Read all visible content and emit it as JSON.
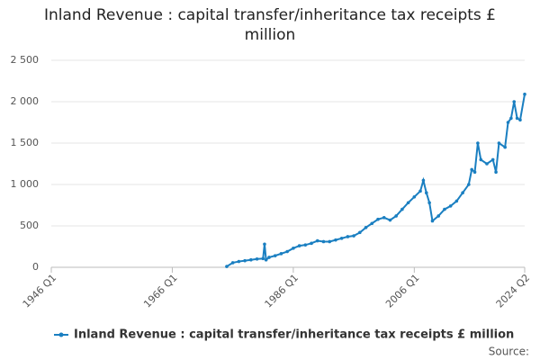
{
  "chart_data": {
    "type": "line",
    "title": "Inland Revenue : capital transfer/inheritance tax receipts £ million",
    "source": "Source:",
    "xlim": [
      1946,
      2024.25
    ],
    "xticks": [
      {
        "value": 1946,
        "label": "1946 Q1"
      },
      {
        "value": 1966,
        "label": "1966 Q1"
      },
      {
        "value": 1986,
        "label": "1986 Q1"
      },
      {
        "value": 2006,
        "label": "2006 Q1"
      },
      {
        "value": 2024.25,
        "label": "2024 Q2"
      }
    ],
    "ylim": [
      0,
      2500
    ],
    "yticks": [
      0,
      500,
      {
        "value": 1000,
        "label": "1 000"
      },
      {
        "value": 1500,
        "label": "1 500"
      },
      {
        "value": 2000,
        "label": "2 000"
      },
      {
        "value": 2500,
        "label": "2 500"
      }
    ],
    "grid": true,
    "legend": "bottom",
    "series": [
      {
        "name": "Inland Revenue : capital transfer/inheritance tax receipts £ million",
        "color": "#1a7fc1",
        "x": [
          1975,
          1976,
          1977,
          1978,
          1979,
          1980,
          1981,
          1981.25,
          1981.5,
          1982,
          1983,
          1984,
          1985,
          1986,
          1987,
          1988,
          1989,
          1990,
          1991,
          1992,
          1993,
          1994,
          1995,
          1996,
          1997,
          1998,
          1999,
          2000,
          2001,
          2002,
          2003,
          2004,
          2005,
          2006,
          2007,
          2007.5,
          2008,
          2008.5,
          2009,
          2010,
          2011,
          2012,
          2013,
          2014,
          2015,
          2015.5,
          2016,
          2016.5,
          2017,
          2018,
          2019,
          2019.5,
          2020,
          2021,
          2021.5,
          2022,
          2022.5,
          2023,
          2023.5,
          2024.25
        ],
        "values": [
          10,
          55,
          70,
          80,
          90,
          100,
          105,
          280,
          90,
          120,
          140,
          165,
          190,
          230,
          260,
          270,
          290,
          320,
          310,
          310,
          330,
          350,
          370,
          380,
          420,
          480,
          530,
          580,
          600,
          570,
          620,
          700,
          780,
          850,
          920,
          1050,
          900,
          780,
          560,
          620,
          700,
          740,
          800,
          900,
          1000,
          1180,
          1150,
          1500,
          1300,
          1250,
          1300,
          1150,
          1500,
          1450,
          1750,
          1800,
          2000,
          1800,
          1780,
          2090
        ]
      }
    ]
  }
}
